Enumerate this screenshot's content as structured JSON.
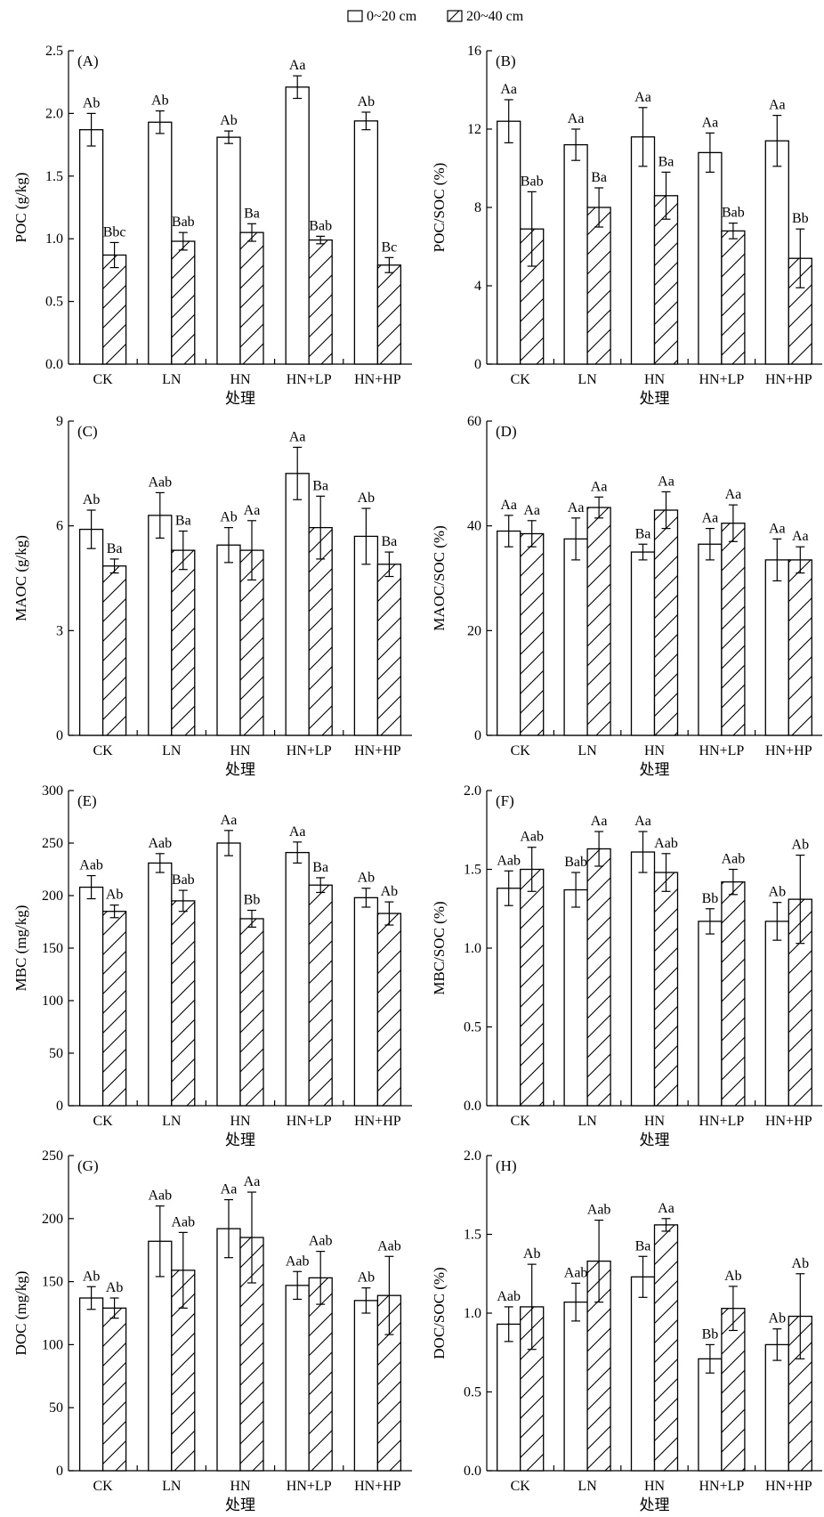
{
  "legend": {
    "items": [
      {
        "name": "0~20 cm",
        "pattern": "open"
      },
      {
        "name": "20~40 cm",
        "pattern": "hatch"
      }
    ]
  },
  "colors": {
    "ink": "#000000",
    "fill": "#ffffff"
  },
  "chart_data": [
    {
      "type": "bar",
      "panel": "(A)",
      "ylabel": "POC (g/kg)",
      "xlabel": "处理",
      "ylim": [
        0,
        2.5
      ],
      "yticks": [
        "0.0",
        "0.5",
        "1.0",
        "1.5",
        "2.0",
        "2.5"
      ],
      "ytick_values": [
        0,
        0.5,
        1.0,
        1.5,
        2.0,
        2.5
      ],
      "categories": [
        "CK",
        "LN",
        "HN",
        "HN+LP",
        "HN+HP"
      ],
      "series": [
        {
          "name": "0~20 cm",
          "values": [
            1.87,
            1.93,
            1.81,
            2.21,
            1.94
          ],
          "errors": [
            0.13,
            0.09,
            0.05,
            0.09,
            0.07
          ],
          "labels": [
            "Ab",
            "Ab",
            "Ab",
            "Aa",
            "Ab"
          ]
        },
        {
          "name": "20~40 cm",
          "values": [
            0.87,
            0.98,
            1.05,
            0.99,
            0.79
          ],
          "errors": [
            0.1,
            0.07,
            0.07,
            0.03,
            0.06
          ],
          "labels": [
            "Bbc",
            "Bab",
            "Ba",
            "Bab",
            "Bc"
          ]
        }
      ]
    },
    {
      "type": "bar",
      "panel": "(B)",
      "ylabel": "POC/SOC (%)",
      "xlabel": "处理",
      "ylim": [
        0,
        16
      ],
      "yticks": [
        "0",
        "4",
        "8",
        "12",
        "16"
      ],
      "ytick_values": [
        0,
        4,
        8,
        12,
        16
      ],
      "categories": [
        "CK",
        "LN",
        "HN",
        "HN+LP",
        "HN+HP"
      ],
      "series": [
        {
          "name": "0~20 cm",
          "values": [
            12.4,
            11.2,
            11.6,
            10.8,
            11.4
          ],
          "errors": [
            1.1,
            0.8,
            1.5,
            1.0,
            1.3
          ],
          "labels": [
            "Aa",
            "Aa",
            "Aa",
            "Aa",
            "Aa"
          ]
        },
        {
          "name": "20~40 cm",
          "values": [
            6.9,
            8.0,
            8.6,
            6.8,
            5.4
          ],
          "errors": [
            1.9,
            1.0,
            1.2,
            0.4,
            1.5
          ],
          "labels": [
            "Bab",
            "Ba",
            "Ba",
            "Bab",
            "Bb"
          ]
        }
      ]
    },
    {
      "type": "bar",
      "panel": "(C)",
      "ylabel": "MAOC (g/kg)",
      "xlabel": "处理",
      "ylim": [
        0,
        9
      ],
      "yticks": [
        "0",
        "3",
        "6",
        "9"
      ],
      "ytick_values": [
        0,
        3,
        6,
        9
      ],
      "categories": [
        "CK",
        "LN",
        "HN",
        "HN+LP",
        "HN+HP"
      ],
      "series": [
        {
          "name": "0~20 cm",
          "values": [
            5.9,
            6.3,
            5.45,
            7.5,
            5.7
          ],
          "errors": [
            0.55,
            0.65,
            0.5,
            0.75,
            0.8
          ],
          "labels": [
            "Ab",
            "Aab",
            "Ab",
            "Aa",
            "Ab"
          ]
        },
        {
          "name": "20~40 cm",
          "values": [
            4.85,
            5.3,
            5.3,
            5.95,
            4.9
          ],
          "errors": [
            0.2,
            0.55,
            0.85,
            0.9,
            0.35
          ],
          "labels": [
            "Ba",
            "Ba",
            "Aa",
            "Ba",
            "Ba"
          ]
        }
      ]
    },
    {
      "type": "bar",
      "panel": "(D)",
      "ylabel": "MAOC/SOC (%)",
      "xlabel": "处理",
      "ylim": [
        0,
        60
      ],
      "yticks": [
        "0",
        "20",
        "40",
        "60"
      ],
      "ytick_values": [
        0,
        20,
        40,
        60
      ],
      "categories": [
        "CK",
        "LN",
        "HN",
        "HN+LP",
        "HN+HP"
      ],
      "series": [
        {
          "name": "0~20 cm",
          "values": [
            39.0,
            37.5,
            35.0,
            36.5,
            33.5
          ],
          "errors": [
            3.0,
            4.0,
            1.5,
            3.0,
            4.0
          ],
          "labels": [
            "Aa",
            "Aa",
            "Ba",
            "Aa",
            "Aa"
          ]
        },
        {
          "name": "20~40 cm",
          "values": [
            38.5,
            43.5,
            43.0,
            40.5,
            33.5
          ],
          "errors": [
            2.5,
            2.0,
            3.5,
            3.5,
            2.5
          ],
          "labels": [
            "Aa",
            "Aa",
            "Aa",
            "Aa",
            "Aa"
          ]
        }
      ]
    },
    {
      "type": "bar",
      "panel": "(E)",
      "ylabel": "MBC (mg/kg)",
      "xlabel": "处理",
      "ylim": [
        0,
        300
      ],
      "yticks": [
        "0",
        "50",
        "100",
        "150",
        "200",
        "250",
        "300"
      ],
      "ytick_values": [
        0,
        50,
        100,
        150,
        200,
        250,
        300
      ],
      "categories": [
        "CK",
        "LN",
        "HN",
        "HN+LP",
        "HN+HP"
      ],
      "series": [
        {
          "name": "0~20 cm",
          "values": [
            208,
            231,
            250,
            241,
            198
          ],
          "errors": [
            11,
            9,
            12,
            10,
            9
          ],
          "labels": [
            "Aab",
            "Aab",
            "Aa",
            "Aa",
            "Ab"
          ]
        },
        {
          "name": "20~40 cm",
          "values": [
            185,
            195,
            178,
            210,
            183
          ],
          "errors": [
            6,
            10,
            8,
            7,
            11
          ],
          "labels": [
            "Ab",
            "Bab",
            "Bb",
            "Ba",
            "Ab"
          ]
        }
      ]
    },
    {
      "type": "bar",
      "panel": "(F)",
      "ylabel": "MBC/SOC (%)",
      "xlabel": "处理",
      "ylim": [
        0,
        2.0
      ],
      "yticks": [
        "0.0",
        "0.5",
        "1.0",
        "1.5",
        "2.0"
      ],
      "ytick_values": [
        0,
        0.5,
        1.0,
        1.5,
        2.0
      ],
      "categories": [
        "CK",
        "LN",
        "HN",
        "HN+LP",
        "HN+HP"
      ],
      "series": [
        {
          "name": "0~20 cm",
          "values": [
            1.38,
            1.37,
            1.61,
            1.17,
            1.17
          ],
          "errors": [
            0.11,
            0.11,
            0.13,
            0.08,
            0.12
          ],
          "labels": [
            "Aab",
            "Bab",
            "Aa",
            "Bb",
            "Ab"
          ]
        },
        {
          "name": "20~40 cm",
          "values": [
            1.5,
            1.63,
            1.48,
            1.42,
            1.31
          ],
          "errors": [
            0.14,
            0.11,
            0.12,
            0.08,
            0.28
          ],
          "labels": [
            "Aab",
            "Aa",
            "Aab",
            "Aab",
            "Ab"
          ]
        }
      ]
    },
    {
      "type": "bar",
      "panel": "(G)",
      "ylabel": "DOC (mg/kg)",
      "xlabel": "处理",
      "ylim": [
        0,
        250
      ],
      "yticks": [
        "0",
        "50",
        "100",
        "150",
        "200",
        "250"
      ],
      "ytick_values": [
        0,
        50,
        100,
        150,
        200,
        250
      ],
      "categories": [
        "CK",
        "LN",
        "HN",
        "HN+LP",
        "HN+HP"
      ],
      "series": [
        {
          "name": "0~20 cm",
          "values": [
            137,
            182,
            192,
            147,
            135
          ],
          "errors": [
            9,
            28,
            23,
            11,
            10
          ],
          "labels": [
            "Ab",
            "Aab",
            "Aa",
            "Aab",
            "Ab"
          ]
        },
        {
          "name": "20~40 cm",
          "values": [
            129,
            159,
            185,
            153,
            139
          ],
          "errors": [
            8,
            30,
            36,
            21,
            31
          ],
          "labels": [
            "Ab",
            "Aab",
            "Aa",
            "Aab",
            "Aab"
          ]
        }
      ]
    },
    {
      "type": "bar",
      "panel": "(H)",
      "ylabel": "DOC/SOC (%)",
      "xlabel": "处理",
      "ylim": [
        0,
        2.0
      ],
      "yticks": [
        "0.0",
        "0.5",
        "1.0",
        "1.5",
        "2.0"
      ],
      "ytick_values": [
        0,
        0.5,
        1.0,
        1.5,
        2.0
      ],
      "categories": [
        "CK",
        "LN",
        "HN",
        "HN+LP",
        "HN+HP"
      ],
      "series": [
        {
          "name": "0~20 cm",
          "values": [
            0.93,
            1.07,
            1.23,
            0.71,
            0.8
          ],
          "errors": [
            0.11,
            0.12,
            0.13,
            0.09,
            0.1
          ],
          "labels": [
            "Aab",
            "Aab",
            "Ba",
            "Bb",
            "Ab"
          ]
        },
        {
          "name": "20~40 cm",
          "values": [
            1.04,
            1.33,
            1.56,
            1.03,
            0.98
          ],
          "errors": [
            0.27,
            0.26,
            0.04,
            0.14,
            0.27
          ],
          "labels": [
            "Ab",
            "Aab",
            "Aa",
            "Ab",
            "Ab"
          ]
        }
      ]
    }
  ]
}
